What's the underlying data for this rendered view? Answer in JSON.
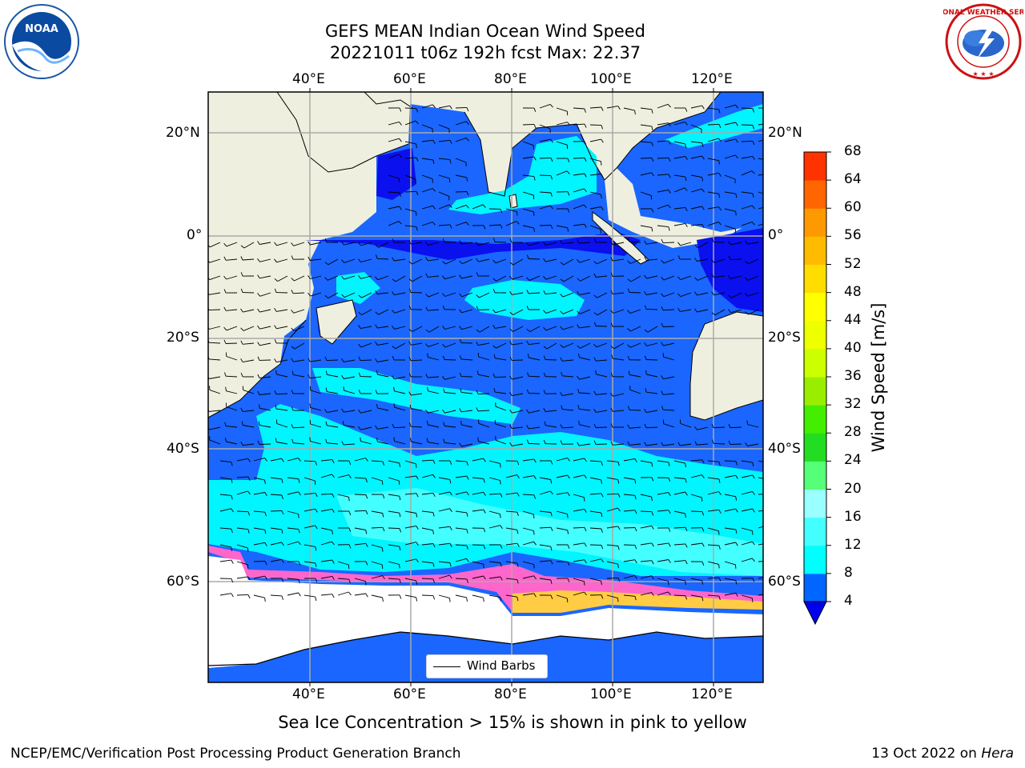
{
  "title_line1": "GEFS MEAN Indian Ocean Wind Speed",
  "title_line2": "20221011 t06z 192h fcst   Max: 22.37",
  "lon_ticks": [
    "40°E",
    "60°E",
    "80°E",
    "100°E",
    "120°E"
  ],
  "lat_ticks_left": [
    "20°N",
    "0°",
    "20°S",
    "40°S",
    "60°S"
  ],
  "lat_ticks_right": [
    "20°N",
    "0°",
    "20°S",
    "40°S",
    "60°S"
  ],
  "colorbar": {
    "title": "Wind Speed [m/s]",
    "ticks": [
      "4",
      "8",
      "12",
      "16",
      "20",
      "24",
      "28",
      "32",
      "36",
      "40",
      "44",
      "48",
      "52",
      "56",
      "60",
      "64",
      "68"
    ],
    "colors": [
      "#0066ff",
      "#00ffff",
      "#44ffff",
      "#99ffff",
      "#55ff77",
      "#22dd22",
      "#44ee00",
      "#99ee00",
      "#ccff00",
      "#eeff00",
      "#ffff00",
      "#ffdd00",
      "#ffbb00",
      "#ff9900",
      "#ff6600",
      "#ff3300"
    ],
    "under_color": "#0000ee"
  },
  "legend_label": "Wind Barbs",
  "sea_ice_note": "Sea Ice Concentration > 15% is shown in pink to yellow",
  "footer_left": "NCEP/EMC/Verification Post Processing Product Generation Branch",
  "footer_date": "13 Oct 2022 on",
  "footer_machine": "Hera",
  "logo_left_text": "NOAA",
  "logo_right_text": "NATIONAL WEATHER SERVICE",
  "colors": {
    "land": "#efefdf",
    "wind_4_8": "#1a66ff",
    "wind_8_12": "#00f5ff",
    "wind_12_16": "#44ffff",
    "wind_low": "#0a10ee"
  }
}
